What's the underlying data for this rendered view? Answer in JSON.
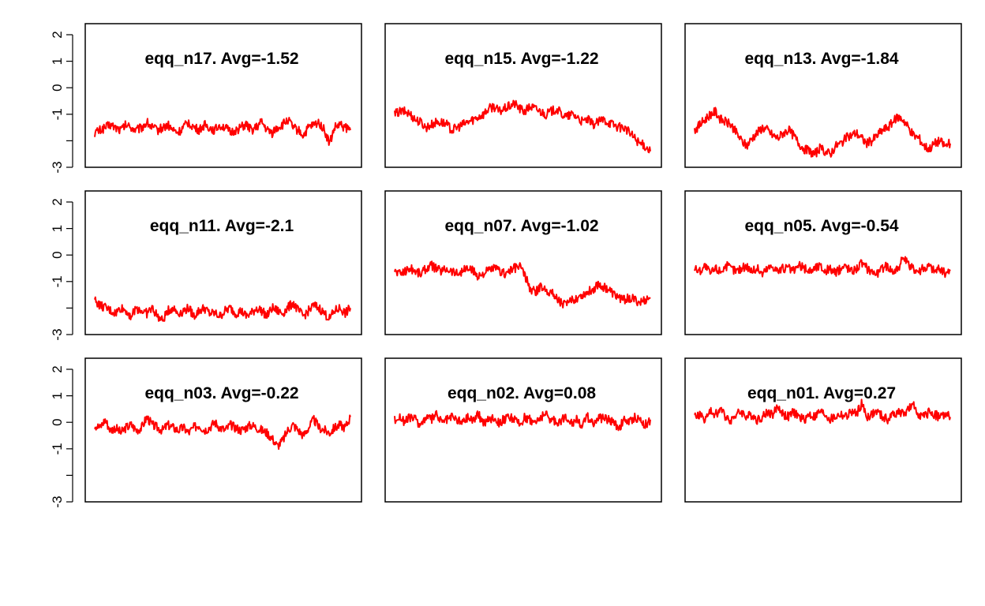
{
  "chart_data": {
    "type": "line",
    "layout": "3x3 grid of small multiples",
    "line_color": "#ff0000",
    "ylim": [
      -3,
      2
    ],
    "yticks": [
      "2",
      "1",
      "0",
      "-1",
      "-3"
    ],
    "grid": false,
    "legend": "none",
    "x_axis_shown": false,
    "panels": [
      {
        "title": "eqq_n17. Avg=-1.52",
        "avg": -1.52,
        "y": [
          -1.7,
          -1.6,
          -1.5,
          -1.4,
          -1.5,
          -1.6,
          -1.4,
          -1.5,
          -1.6,
          -1.5,
          -1.3,
          -1.5,
          -1.6,
          -1.5,
          -1.4,
          -1.6,
          -1.7,
          -1.5,
          -1.3,
          -1.5,
          -1.6,
          -1.4,
          -1.5,
          -1.6,
          -1.4,
          -1.5,
          -1.7,
          -1.6,
          -1.5,
          -1.4,
          -1.6,
          -1.5,
          -1.3,
          -1.6,
          -1.7,
          -1.5,
          -1.4,
          -1.2,
          -1.5,
          -1.6,
          -1.8,
          -1.5,
          -1.4,
          -1.3,
          -1.6,
          -2.1,
          -1.5,
          -1.4,
          -1.5,
          -1.6
        ]
      },
      {
        "title": "eqq_n15. Avg=-1.22",
        "avg": -1.22,
        "y": [
          -1.0,
          -0.9,
          -0.9,
          -1.0,
          -1.2,
          -1.3,
          -1.5,
          -1.4,
          -1.3,
          -1.3,
          -1.4,
          -1.6,
          -1.5,
          -1.4,
          -1.3,
          -1.2,
          -1.1,
          -1.0,
          -0.8,
          -0.7,
          -0.9,
          -0.8,
          -0.7,
          -0.6,
          -0.8,
          -0.9,
          -0.7,
          -0.8,
          -0.9,
          -1.0,
          -0.9,
          -0.8,
          -1.0,
          -1.1,
          -1.0,
          -1.1,
          -1.3,
          -1.2,
          -1.4,
          -1.3,
          -1.2,
          -1.3,
          -1.4,
          -1.5,
          -1.5,
          -1.7,
          -1.9,
          -2.1,
          -2.2,
          -2.4
        ]
      },
      {
        "title": "eqq_n13. Avg=-1.84",
        "avg": -1.84,
        "y": [
          -1.6,
          -1.4,
          -1.2,
          -1.0,
          -0.9,
          -1.2,
          -1.3,
          -1.4,
          -1.7,
          -2.0,
          -2.2,
          -1.9,
          -1.7,
          -1.5,
          -1.6,
          -1.8,
          -1.9,
          -1.7,
          -1.6,
          -1.8,
          -2.1,
          -2.3,
          -2.4,
          -2.5,
          -2.3,
          -2.4,
          -2.5,
          -2.2,
          -2.1,
          -1.9,
          -1.8,
          -1.7,
          -1.9,
          -2.1,
          -2.0,
          -1.8,
          -1.6,
          -1.5,
          -1.3,
          -1.1,
          -1.2,
          -1.5,
          -1.8,
          -1.9,
          -2.2,
          -2.3,
          -2.1,
          -2.0,
          -2.2,
          -2.1
        ]
      },
      {
        "title": "eqq_n11. Avg=-2.1",
        "avg": -2.1,
        "y": [
          -1.7,
          -1.9,
          -2.0,
          -2.1,
          -2.2,
          -2.0,
          -2.1,
          -2.3,
          -2.0,
          -2.1,
          -2.2,
          -2.0,
          -2.3,
          -2.5,
          -2.1,
          -2.0,
          -2.2,
          -2.1,
          -2.0,
          -2.3,
          -2.1,
          -2.0,
          -2.2,
          -2.2,
          -2.3,
          -2.1,
          -2.0,
          -2.2,
          -2.1,
          -2.3,
          -2.2,
          -2.0,
          -2.1,
          -2.3,
          -2.0,
          -2.1,
          -2.2,
          -2.0,
          -1.8,
          -2.1,
          -2.3,
          -2.1,
          -1.9,
          -2.0,
          -2.2,
          -2.4,
          -2.1,
          -2.0,
          -2.2,
          -2.0
        ]
      },
      {
        "title": "eqq_n07. Avg=-1.02",
        "avg": -1.02,
        "y": [
          -0.6,
          -0.7,
          -0.6,
          -0.5,
          -0.6,
          -0.7,
          -0.5,
          -0.4,
          -0.5,
          -0.6,
          -0.5,
          -0.6,
          -0.7,
          -0.6,
          -0.5,
          -0.6,
          -0.8,
          -0.7,
          -0.6,
          -0.5,
          -0.6,
          -0.7,
          -0.6,
          -0.5,
          -0.4,
          -0.8,
          -1.3,
          -1.4,
          -1.2,
          -1.3,
          -1.4,
          -1.6,
          -1.8,
          -1.9,
          -1.7,
          -1.6,
          -1.5,
          -1.4,
          -1.3,
          -1.1,
          -1.2,
          -1.3,
          -1.5,
          -1.6,
          -1.7,
          -1.6,
          -1.7,
          -1.8,
          -1.7,
          -1.6
        ]
      },
      {
        "title": "eqq_n05. Avg=-0.54",
        "avg": -0.54,
        "y": [
          -0.5,
          -0.6,
          -0.4,
          -0.7,
          -0.5,
          -0.6,
          -0.4,
          -0.5,
          -0.6,
          -0.5,
          -0.4,
          -0.6,
          -0.5,
          -0.7,
          -0.5,
          -0.4,
          -0.6,
          -0.5,
          -0.5,
          -0.6,
          -0.4,
          -0.5,
          -0.6,
          -0.5,
          -0.4,
          -0.6,
          -0.5,
          -0.7,
          -0.5,
          -0.4,
          -0.6,
          -0.5,
          -0.3,
          -0.5,
          -0.6,
          -0.7,
          -0.5,
          -0.4,
          -0.6,
          -0.5,
          -0.1,
          -0.4,
          -0.5,
          -0.6,
          -0.5,
          -0.4,
          -0.6,
          -0.5,
          -0.7,
          -0.6
        ]
      },
      {
        "title": "eqq_n03. Avg=-0.22",
        "avg": -0.22,
        "y": [
          -0.1,
          -0.2,
          0.1,
          -0.3,
          -0.2,
          -0.4,
          -0.2,
          -0.1,
          -0.3,
          -0.2,
          0.2,
          -0.1,
          -0.2,
          -0.3,
          -0.1,
          -0.2,
          -0.3,
          -0.2,
          -0.4,
          -0.2,
          -0.1,
          -0.3,
          -0.2,
          0.0,
          -0.2,
          -0.3,
          -0.1,
          -0.2,
          -0.3,
          -0.2,
          -0.1,
          -0.2,
          -0.3,
          -0.4,
          -0.6,
          -0.9,
          -0.7,
          -0.3,
          -0.1,
          -0.3,
          -0.5,
          -0.2,
          0.1,
          -0.2,
          -0.3,
          -0.4,
          -0.2,
          -0.1,
          -0.2,
          0.2
        ]
      },
      {
        "title": "eqq_n02. Avg=0.08",
        "avg": 0.08,
        "y": [
          0.1,
          0.2,
          0.0,
          0.2,
          0.1,
          -0.1,
          0.2,
          0.1,
          0.3,
          0.0,
          0.1,
          0.2,
          0.1,
          0.0,
          0.2,
          0.1,
          0.3,
          0.0,
          0.1,
          0.2,
          0.0,
          0.1,
          0.2,
          0.1,
          -0.1,
          0.2,
          0.1,
          0.0,
          0.2,
          0.3,
          0.1,
          0.0,
          0.1,
          0.2,
          0.0,
          0.1,
          -0.1,
          0.2,
          0.0,
          0.1,
          0.2,
          0.1,
          0.0,
          -0.2,
          0.1,
          0.0,
          0.2,
          0.1,
          -0.1,
          0.1
        ]
      },
      {
        "title": "eqq_n01. Avg=0.27",
        "avg": 0.27,
        "y": [
          0.2,
          0.3,
          0.1,
          0.4,
          0.3,
          0.5,
          0.2,
          0.1,
          0.3,
          0.4,
          0.2,
          0.3,
          0.1,
          0.2,
          0.4,
          0.3,
          0.6,
          0.3,
          0.2,
          0.4,
          0.2,
          0.1,
          0.3,
          0.2,
          0.4,
          0.3,
          0.1,
          0.2,
          0.3,
          0.2,
          0.4,
          0.3,
          0.7,
          0.2,
          0.3,
          0.4,
          0.2,
          0.1,
          0.3,
          0.4,
          0.3,
          0.5,
          0.6,
          0.3,
          0.2,
          0.4,
          0.3,
          0.2,
          0.3,
          0.2
        ]
      }
    ]
  }
}
